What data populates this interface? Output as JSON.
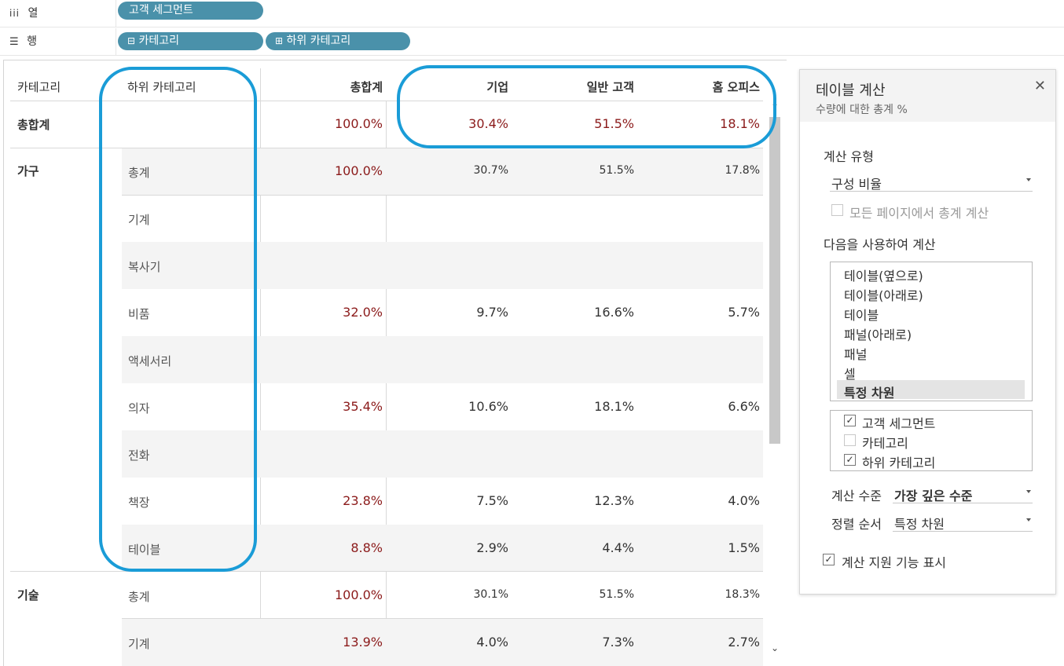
{
  "shelves": {
    "columns": {
      "icon": "column-shelf-icon",
      "label": "열",
      "pill": "고객 세그먼트"
    },
    "rows": {
      "icon": "row-shelf-icon",
      "label": "행",
      "pills": [
        "카테고리",
        "하위 카테고리"
      ]
    }
  },
  "table": {
    "headers": {
      "category": "카테고리",
      "subcategory": "하위 카테고리",
      "total": "총합계",
      "seg1": "기업",
      "seg2": "일반 고객",
      "seg3": "홈 오피스"
    },
    "grand_total": {
      "label": "총합계",
      "total": "100.0%",
      "seg1": "30.4%",
      "seg2": "51.5%",
      "seg3": "18.1%"
    },
    "furniture": {
      "label": "가구",
      "rows": [
        {
          "name": "총계",
          "total": "100.0%",
          "seg1": "30.7%",
          "seg2": "51.5%",
          "seg3": "17.8%"
        },
        {
          "name": "기계",
          "total": "",
          "seg1": "",
          "seg2": "",
          "seg3": ""
        },
        {
          "name": "복사기",
          "total": "",
          "seg1": "",
          "seg2": "",
          "seg3": ""
        },
        {
          "name": "비품",
          "total": "32.0%",
          "seg1": "9.7%",
          "seg2": "16.6%",
          "seg3": "5.7%"
        },
        {
          "name": "액세서리",
          "total": "",
          "seg1": "",
          "seg2": "",
          "seg3": ""
        },
        {
          "name": "의자",
          "total": "35.4%",
          "seg1": "10.6%",
          "seg2": "18.1%",
          "seg3": "6.6%"
        },
        {
          "name": "전화",
          "total": "",
          "seg1": "",
          "seg2": "",
          "seg3": ""
        },
        {
          "name": "책장",
          "total": "23.8%",
          "seg1": "7.5%",
          "seg2": "12.3%",
          "seg3": "4.0%"
        },
        {
          "name": "테이블",
          "total": "8.8%",
          "seg1": "2.9%",
          "seg2": "4.4%",
          "seg3": "1.5%"
        }
      ]
    },
    "technology": {
      "label": "기술",
      "rows": [
        {
          "name": "총계",
          "total": "100.0%",
          "seg1": "30.1%",
          "seg2": "51.5%",
          "seg3": "18.3%"
        },
        {
          "name": "기계",
          "total": "13.9%",
          "seg1": "4.0%",
          "seg2": "7.3%",
          "seg3": "2.7%"
        }
      ]
    }
  },
  "panel": {
    "title": "테이블 계산",
    "subtitle": "수량에 대한 총계 %",
    "close_icon": "close-icon",
    "calc_type_label": "계산 유형",
    "calc_type_value": "구성 비율",
    "all_pages_label": "모든 페이지에서 총계 계산",
    "compute_using_label": "다음을 사용하여 계산",
    "compute_options": [
      "테이블(옆으로)",
      "테이블(아래로)",
      "테이블",
      "패널(아래로)",
      "패널",
      "셀",
      "특정 차원"
    ],
    "selected_option": "특정 차원",
    "dimensions": [
      {
        "label": "고객 세그먼트",
        "checked": true
      },
      {
        "label": "카테고리",
        "checked": false
      },
      {
        "label": "하위 카테고리",
        "checked": true
      }
    ],
    "level_label": "계산 수준",
    "level_value": "가장 깊은 수준",
    "sort_label": "정렬 순서",
    "sort_value": "특정 차원",
    "show_assist_label": "계산 지원 기능 표시"
  },
  "colors": {
    "pill": "#4a91aa",
    "highlight_oval": "#1a9cd7",
    "value_red": "#8b1a1a"
  }
}
